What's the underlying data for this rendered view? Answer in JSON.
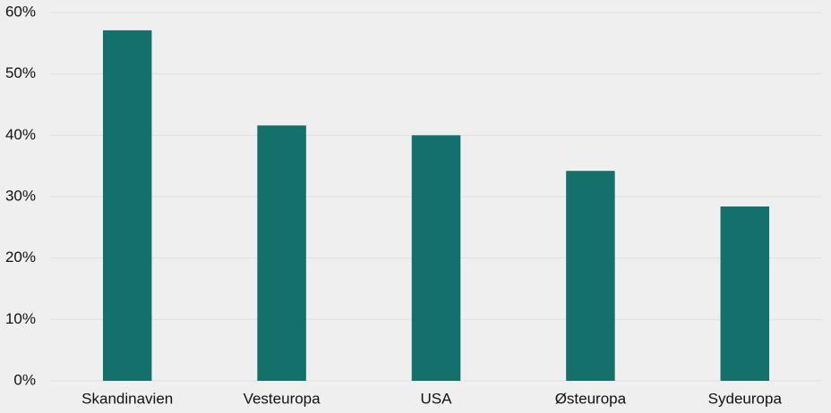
{
  "chart_data": {
    "type": "bar",
    "categories": [
      "Skandinavien",
      "Vesteuropa",
      "USA",
      "Østeuropa",
      "Sydeuropa"
    ],
    "values": [
      57.1,
      41.6,
      40.0,
      34.2,
      28.4
    ],
    "color": "#13706a",
    "ylim": [
      0,
      60
    ],
    "yticks": [
      {
        "value": 0,
        "label": "0%"
      },
      {
        "value": 10,
        "label": "10%"
      },
      {
        "value": 20,
        "label": "20%"
      },
      {
        "value": 30,
        "label": "30%"
      },
      {
        "value": 40,
        "label": "40%"
      },
      {
        "value": 50,
        "label": "50%"
      },
      {
        "value": 60,
        "label": "60%"
      }
    ],
    "grid": true
  }
}
